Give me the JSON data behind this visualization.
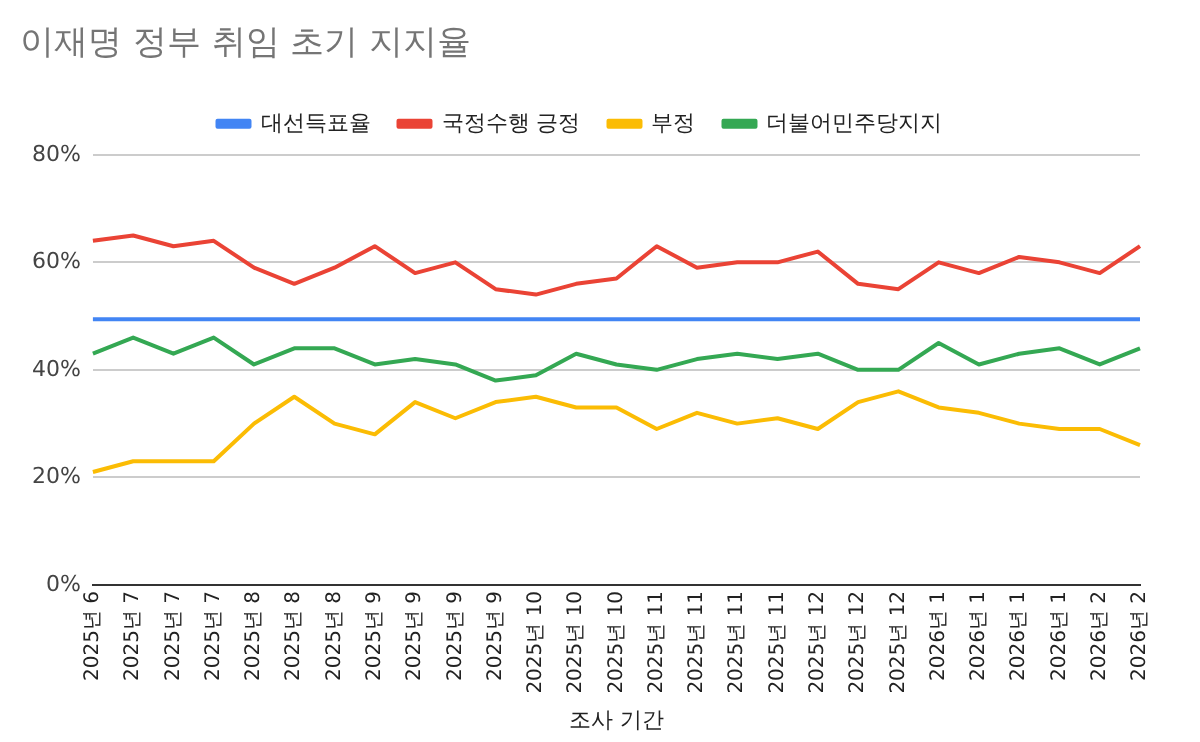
{
  "chart_data": {
    "type": "line",
    "title": "이재명 정부 취임 초기 지지율",
    "xlabel": "조사 기간",
    "categories": [
      "2025년 6",
      "2025년 7",
      "2025년 7",
      "2025년 7",
      "2025년 8",
      "2025년 8",
      "2025년 8",
      "2025년 9",
      "2025년 9",
      "2025년 9",
      "2025년 9",
      "2025년 10",
      "2025년 10",
      "2025년 10",
      "2025년 11",
      "2025년 11",
      "2025년 11",
      "2025년 11",
      "2025년 12",
      "2025년 12",
      "2025년 12",
      "2026년 1",
      "2026년 1",
      "2026년 1",
      "2026년 1",
      "2026년 2",
      "2026년 2"
    ],
    "series": [
      {
        "name": "대선득표율",
        "color": "#4285f4",
        "values": [
          49.4,
          49.4,
          49.4,
          49.4,
          49.4,
          49.4,
          49.4,
          49.4,
          49.4,
          49.4,
          49.4,
          49.4,
          49.4,
          49.4,
          49.4,
          49.4,
          49.4,
          49.4,
          49.4,
          49.4,
          49.4,
          49.4,
          49.4,
          49.4,
          49.4,
          49.4,
          49.4
        ]
      },
      {
        "name": "국정수행 긍정",
        "color": "#ea4335",
        "values": [
          64,
          65,
          63,
          64,
          59,
          56,
          59,
          63,
          58,
          60,
          55,
          54,
          56,
          57,
          63,
          59,
          60,
          60,
          62,
          56,
          55,
          60,
          58,
          61,
          60,
          58,
          63
        ]
      },
      {
        "name": "부정",
        "color": "#fbbc04",
        "values": [
          21,
          23,
          23,
          23,
          30,
          35,
          30,
          28,
          34,
          31,
          34,
          35,
          33,
          33,
          29,
          32,
          30,
          31,
          29,
          34,
          36,
          33,
          32,
          30,
          29,
          29,
          26
        ]
      },
      {
        "name": "더불어민주당지지",
        "color": "#34a853",
        "values": [
          43,
          46,
          43,
          46,
          41,
          44,
          44,
          41,
          42,
          41,
          38,
          39,
          43,
          41,
          40,
          42,
          43,
          42,
          43,
          40,
          40,
          45,
          41,
          43,
          44,
          41,
          44
        ]
      }
    ],
    "ylim": [
      0,
      80
    ],
    "yticks": [
      {
        "value": 0,
        "label": "0%"
      },
      {
        "value": 20,
        "label": "20%"
      },
      {
        "value": 40,
        "label": "40%"
      },
      {
        "value": 60,
        "label": "60%"
      },
      {
        "value": 80,
        "label": "80%"
      }
    ],
    "grid": "y",
    "legend": "top",
    "marker": "none",
    "line_style": "solid"
  }
}
